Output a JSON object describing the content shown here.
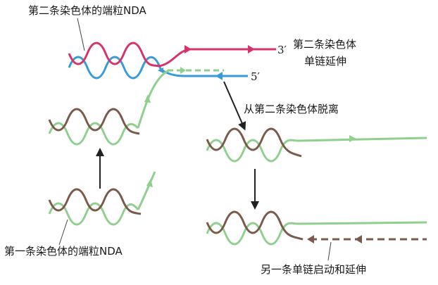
{
  "labels": {
    "second_telomere": "第二条染色体的端粒NDA",
    "second_extension_line1": "第二条染色体",
    "second_extension_line2": "单链延伸",
    "detach": "从第二条染色体脱离",
    "first_telomere": "第一条染色体的端粒NDA",
    "other_strand": "另一条单链启动和延伸",
    "three_prime": "3′",
    "five_prime": "5′"
  },
  "colors": {
    "magenta": "#d6336c",
    "blue": "#3a9ad9",
    "green": "#8fd08f",
    "brown": "#7a5a4a",
    "arrow": "#222222",
    "text": "#1a1a1a"
  }
}
